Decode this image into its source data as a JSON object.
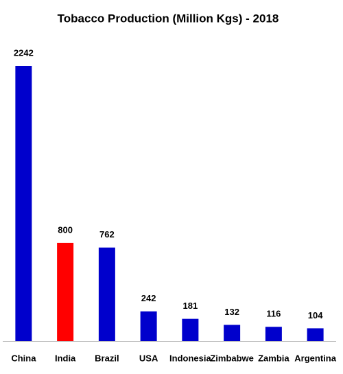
{
  "chart_data": {
    "type": "bar",
    "title": "Tobacco Production  (Million Kgs) - 2018",
    "categories": [
      "China",
      "India",
      "Brazil",
      "USA",
      "Indonesia",
      "Zimbabwe",
      "Zambia",
      "Argentina"
    ],
    "values": [
      2242,
      800,
      762,
      242,
      181,
      132,
      116,
      104
    ],
    "colors": [
      "#0000cc",
      "#ff0000",
      "#0000cc",
      "#0000cc",
      "#0000cc",
      "#0000cc",
      "#0000cc",
      "#0000cc"
    ]
  }
}
